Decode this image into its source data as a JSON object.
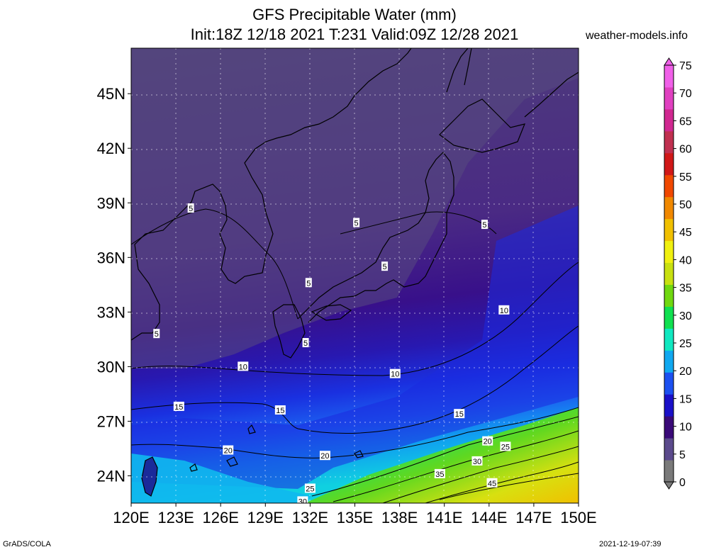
{
  "title": {
    "line1": "GFS Precipitable Water (mm)",
    "line2": "Init:18Z 12/18 2021 T:231 Valid:09Z 12/28 2021"
  },
  "source": "weather-models.info",
  "footer": {
    "left": "GrADS/COLA",
    "right": "2021-12-19-07:39"
  },
  "map": {
    "lon_range": [
      120,
      150
    ],
    "lat_range": [
      22.5,
      47.5
    ],
    "lon_ticks": [
      "120E",
      "123E",
      "126E",
      "129E",
      "132E",
      "135E",
      "138E",
      "141E",
      "144E",
      "147E",
      "150E"
    ],
    "lat_ticks": [
      "24N",
      "27N",
      "30N",
      "33N",
      "36N",
      "39N",
      "42N",
      "45N"
    ],
    "contour_labels": [
      {
        "text": "5",
        "lon": 124.0,
        "lat": 38.7
      },
      {
        "text": "5",
        "lon": 135.1,
        "lat": 37.9
      },
      {
        "text": "5",
        "lon": 143.7,
        "lat": 37.8
      },
      {
        "text": "5",
        "lon": 137.0,
        "lat": 35.5
      },
      {
        "text": "5",
        "lon": 131.9,
        "lat": 34.6
      },
      {
        "text": "5",
        "lon": 121.7,
        "lat": 31.8
      },
      {
        "text": "5",
        "lon": 131.7,
        "lat": 31.3
      },
      {
        "text": "10",
        "lon": 145.0,
        "lat": 33.1
      },
      {
        "text": "10",
        "lon": 127.5,
        "lat": 30.0
      },
      {
        "text": "10",
        "lon": 137.7,
        "lat": 29.6
      },
      {
        "text": "15",
        "lon": 123.2,
        "lat": 27.8
      },
      {
        "text": "15",
        "lon": 130.0,
        "lat": 27.6
      },
      {
        "text": "15",
        "lon": 142.0,
        "lat": 27.4
      },
      {
        "text": "20",
        "lon": 126.5,
        "lat": 25.4
      },
      {
        "text": "20",
        "lon": 143.9,
        "lat": 25.9
      },
      {
        "text": "20",
        "lon": 133.0,
        "lat": 25.1
      },
      {
        "text": "25",
        "lon": 145.1,
        "lat": 25.6
      },
      {
        "text": "30",
        "lon": 143.2,
        "lat": 24.8
      },
      {
        "text": "35",
        "lon": 140.7,
        "lat": 24.1
      },
      {
        "text": "45",
        "lon": 144.2,
        "lat": 23.6
      },
      {
        "text": "25",
        "lon": 132.0,
        "lat": 23.3
      },
      {
        "text": "30",
        "lon": 131.5,
        "lat": 22.6
      }
    ]
  },
  "colorbar": {
    "labels": [
      "0",
      "5",
      "10",
      "15",
      "20",
      "25",
      "30",
      "35",
      "40",
      "45",
      "50",
      "55",
      "60",
      "65",
      "70",
      "75"
    ],
    "colors": [
      "#7a7a7a",
      "#5b4a8c",
      "#3a0a78",
      "#1a10c8",
      "#1c50f0",
      "#10a8f0",
      "#10e8c0",
      "#10e050",
      "#70d810",
      "#c8e010",
      "#f0f010",
      "#f0c000",
      "#f08800",
      "#f04800",
      "#d01818",
      "#c03050",
      "#d02890",
      "#e040c0",
      "#f060e8"
    ]
  }
}
